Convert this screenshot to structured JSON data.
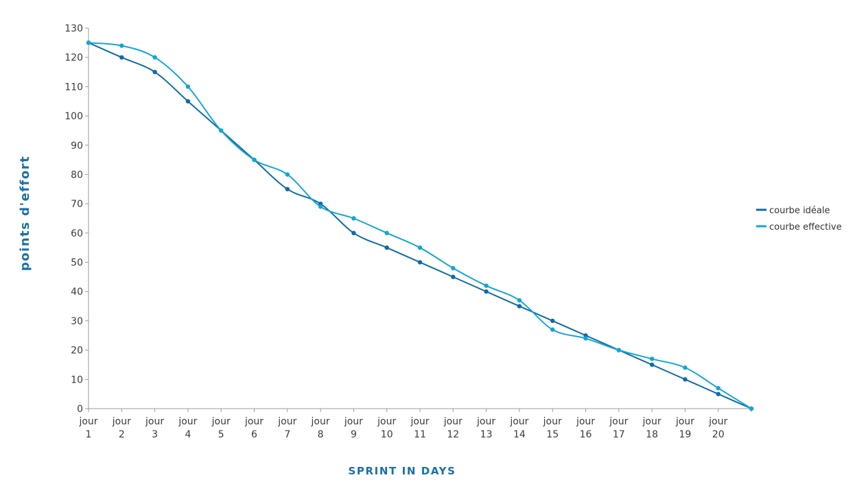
{
  "chart_data": {
    "type": "line",
    "xlabel": "SPRINT IN DAYS",
    "ylabel": "points d'effort",
    "ylim": [
      0,
      130
    ],
    "yticks": [
      0,
      10,
      20,
      30,
      40,
      50,
      60,
      70,
      80,
      90,
      100,
      110,
      120,
      130
    ],
    "categories": [
      [
        "jour",
        "1"
      ],
      [
        "jour",
        "2"
      ],
      [
        "jour",
        "3"
      ],
      [
        "jour",
        "4"
      ],
      [
        "jour",
        "5"
      ],
      [
        "jour",
        "6"
      ],
      [
        "jour",
        "7"
      ],
      [
        "jour",
        "8"
      ],
      [
        "jour",
        "9"
      ],
      [
        "jour",
        "10"
      ],
      [
        "jour",
        "11"
      ],
      [
        "jour",
        "12"
      ],
      [
        "jour",
        "13"
      ],
      [
        "jour",
        "14"
      ],
      [
        "jour",
        "15"
      ],
      [
        "jour",
        "16"
      ],
      [
        "jour",
        "17"
      ],
      [
        "jour",
        "18"
      ],
      [
        "jour",
        "19"
      ],
      [
        "jour",
        "20"
      ],
      [
        "",
        ""
      ]
    ],
    "series": [
      {
        "name": "courbe idéale",
        "color": "#0f6aa6",
        "values": [
          125,
          120,
          115,
          105,
          95,
          85,
          75,
          70,
          60,
          55,
          50,
          45,
          40,
          35,
          30,
          25,
          20,
          15,
          10,
          5,
          0
        ]
      },
      {
        "name": "courbe effective",
        "color": "#12a6d4",
        "values": [
          125,
          124,
          120,
          110,
          95,
          85,
          80,
          69,
          65,
          60,
          55,
          48,
          42,
          37,
          27,
          24,
          20,
          17,
          14,
          7,
          0
        ]
      }
    ],
    "legend_position": "right",
    "grid": false
  }
}
